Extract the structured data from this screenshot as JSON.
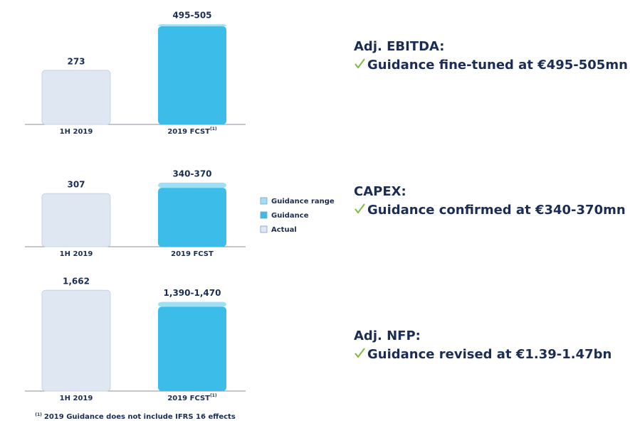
{
  "chart_data": [
    {
      "type": "bar",
      "title": "Adj. EBITDA:",
      "subtitle": "Guidance fine-tuned at €495-505mn",
      "categories": [
        "1H 2019",
        "2019 FCST"
      ],
      "category_notes": [
        null,
        "(1)"
      ],
      "ylim": [
        0,
        520
      ],
      "series": [
        {
          "name": "Guidance range",
          "color": "#9fe0f5",
          "values": [
            null,
            10
          ]
        },
        {
          "name": "Guidance",
          "color": "#3cbde9",
          "values": [
            null,
            495
          ],
          "value_labels": [
            null,
            "495-505"
          ]
        },
        {
          "name": "Actual",
          "color": "#dfe8f2",
          "values": [
            273,
            null
          ],
          "value_labels": [
            "273",
            null
          ]
        }
      ]
    },
    {
      "type": "bar",
      "title": "CAPEX:",
      "subtitle": "Guidance confirmed at €340-370mn",
      "categories": [
        "1H 2019",
        "2019 FCST"
      ],
      "category_notes": [
        null,
        null
      ],
      "ylim": [
        0,
        390
      ],
      "series": [
        {
          "name": "Guidance range",
          "color": "#9fe0f5",
          "values": [
            null,
            30
          ]
        },
        {
          "name": "Guidance",
          "color": "#3cbde9",
          "values": [
            null,
            340
          ],
          "value_labels": [
            null,
            "340-370"
          ]
        },
        {
          "name": "Actual",
          "color": "#dfe8f2",
          "values": [
            307,
            null
          ],
          "value_labels": [
            "307",
            null
          ]
        }
      ]
    },
    {
      "type": "bar",
      "title": "Adj. NFP:",
      "subtitle": "Guidance revised at €1.39-1.47bn",
      "categories": [
        "1H 2019",
        "2019 FCST"
      ],
      "category_notes": [
        null,
        "(1)"
      ],
      "ylim": [
        0,
        1700
      ],
      "series": [
        {
          "name": "Guidance range",
          "color": "#9fe0f5",
          "values": [
            null,
            80
          ]
        },
        {
          "name": "Guidance",
          "color": "#3cbde9",
          "values": [
            null,
            1390
          ],
          "value_labels": [
            null,
            "1,390-1,470"
          ]
        },
        {
          "name": "Actual",
          "color": "#dfe8f2",
          "values": [
            1662,
            null
          ],
          "value_labels": [
            "1,662",
            null
          ]
        }
      ]
    }
  ],
  "footnote": {
    "mark": "(1)",
    "text": "2019 Guidance does not include IFRS 16 effects"
  }
}
